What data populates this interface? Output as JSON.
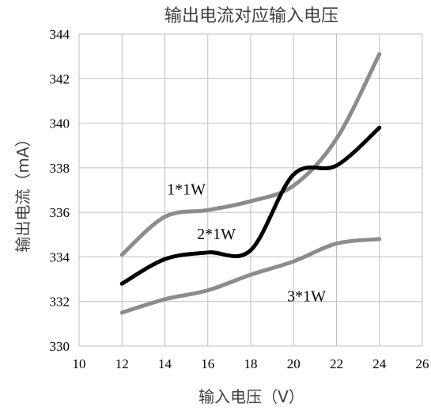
{
  "chart_data": {
    "type": "line",
    "title": "输出电流对应输入电压",
    "xlabel": "输入电压（V）",
    "ylabel": "输出电流（mA）",
    "xlim": [
      10,
      26
    ],
    "ylim": [
      330,
      344
    ],
    "x_ticks": [
      "10",
      "12",
      "14",
      "16",
      "18",
      "20",
      "22",
      "24",
      "26"
    ],
    "y_ticks": [
      "330",
      "332",
      "334",
      "336",
      "338",
      "340",
      "342",
      "344"
    ],
    "grid": true,
    "series": [
      {
        "name": "1*1W",
        "color": "#8c8c8c",
        "x": [
          12,
          14,
          16,
          18,
          20,
          22,
          24
        ],
        "y": [
          334.1,
          335.8,
          336.1,
          336.5,
          337.2,
          339.3,
          343.1
        ]
      },
      {
        "name": "2*1W",
        "color": "#000000",
        "x": [
          12,
          14,
          16,
          18,
          20,
          22,
          24
        ],
        "y": [
          332.8,
          333.9,
          334.2,
          334.3,
          337.7,
          338.1,
          339.8
        ]
      },
      {
        "name": "3*1W",
        "color": "#8c8c8c",
        "x": [
          12,
          14,
          16,
          18,
          20,
          22,
          24
        ],
        "y": [
          331.5,
          332.1,
          332.5,
          333.2,
          333.8,
          334.6,
          334.8
        ]
      }
    ]
  }
}
